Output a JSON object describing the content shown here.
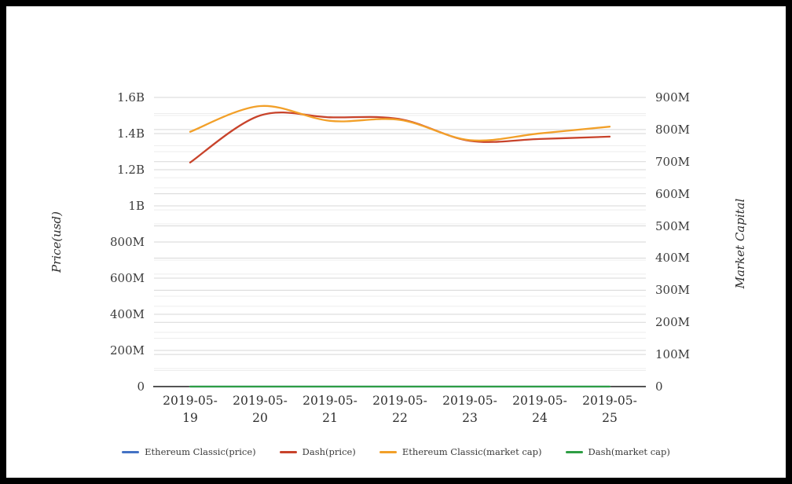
{
  "chart_data": {
    "type": "line",
    "title": "",
    "x": [
      "2019-05-19",
      "2019-05-20",
      "2019-05-21",
      "2019-05-22",
      "2019-05-23",
      "2019-05-24",
      "2019-05-25"
    ],
    "series": [
      {
        "name": "Ethereum Classic(price)",
        "color": "#4472c4",
        "axis": "left",
        "values": [
          0,
          0,
          0,
          0,
          0,
          0,
          0
        ]
      },
      {
        "name": "Dash(price)",
        "color": "#c8432b",
        "axis": "left",
        "values": [
          1240000000,
          1500000000,
          1490000000,
          1480000000,
          1360000000,
          1370000000,
          1383000000
        ]
      },
      {
        "name": "Ethereum Classic(market cap)",
        "color": "#f2a029",
        "axis": "right",
        "values": [
          793000000,
          873000000,
          827000000,
          830000000,
          767000000,
          788000000,
          809000000
        ]
      },
      {
        "name": "Dash(market cap)",
        "color": "#2e9e44",
        "axis": "right",
        "values": [
          0,
          0,
          0,
          0,
          0,
          0,
          0
        ]
      }
    ],
    "left_axis": {
      "label": "Price(usd)",
      "ticks": [
        "0",
        "200M",
        "400M",
        "600M",
        "800M",
        "1B",
        "1.2B",
        "1.4B",
        "1.6B"
      ],
      "min": 0,
      "max": 1600000000
    },
    "right_axis": {
      "label": "Market Capital",
      "ticks": [
        "0",
        "100M",
        "200M",
        "300M",
        "400M",
        "500M",
        "600M",
        "700M",
        "800M",
        "900M"
      ],
      "min": 0,
      "max": 900000000
    },
    "legend_position": "bottom",
    "grid": true,
    "colors": {
      "background": "#ffffff",
      "frame": "#000000",
      "axis_line": "#1c1c1c",
      "grid_major": "#d7d7d7",
      "grid_minor": "#ededed",
      "text": "#3c3c3c"
    }
  }
}
